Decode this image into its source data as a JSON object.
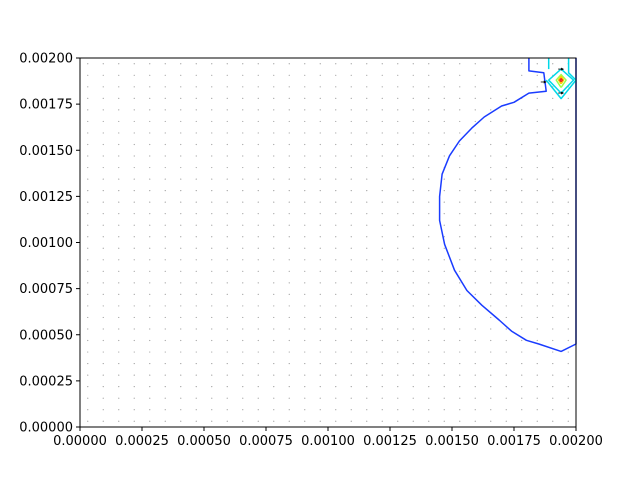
{
  "chart_data": {
    "type": "contour",
    "xlim": [
      0,
      0.002
    ],
    "ylim": [
      0,
      0.002
    ],
    "x_ticks": [
      0,
      0.00025,
      0.0005,
      0.00075,
      0.001,
      0.00125,
      0.0015,
      0.00175,
      0.002
    ],
    "y_ticks": [
      0,
      0.00025,
      0.0005,
      0.00075,
      0.001,
      0.00125,
      0.0015,
      0.00175,
      0.002
    ],
    "x_tick_labels": [
      "0.00000",
      "0.00025",
      "0.00050",
      "0.00075",
      "0.00100",
      "0.00125",
      "0.00150",
      "0.00175",
      "0.00200"
    ],
    "y_tick_labels": [
      "0.00000",
      "0.00025",
      "0.00050",
      "0.00075",
      "0.00100",
      "0.00125",
      "0.00150",
      "0.00175",
      "0.00200"
    ],
    "grid": false,
    "sample_grid": {
      "nx": 32,
      "ny": 32,
      "color": "#9e9e9e"
    },
    "contours": [
      {
        "color": "#1a3cff",
        "points": [
          [
            0.00181,
            0.002
          ],
          [
            0.00181,
            0.00193
          ],
          [
            0.00187,
            0.00192
          ],
          [
            0.00188,
            0.00182
          ],
          [
            0.00181,
            0.00181
          ],
          [
            0.00175,
            0.00176
          ],
          [
            0.0017,
            0.00174
          ],
          [
            0.00163,
            0.00168
          ],
          [
            0.00158,
            0.00162
          ],
          [
            0.00153,
            0.00155
          ],
          [
            0.00149,
            0.00147
          ],
          [
            0.00146,
            0.00137
          ],
          [
            0.00145,
            0.00125
          ],
          [
            0.00145,
            0.00112
          ],
          [
            0.00147,
            0.00099
          ],
          [
            0.00151,
            0.00085
          ],
          [
            0.00156,
            0.00074
          ],
          [
            0.00162,
            0.00066
          ],
          [
            0.00169,
            0.00058
          ],
          [
            0.00174,
            0.00052
          ],
          [
            0.0018,
            0.00047
          ],
          [
            0.00185,
            0.00045
          ],
          [
            0.00194,
            0.00041
          ],
          [
            0.002,
            0.00045
          ],
          [
            0.002,
            0.002
          ]
        ]
      },
      {
        "color": "#00d8e8",
        "points": [
          [
            0.00188,
            0.00188
          ],
          [
            0.00194,
            0.00178
          ],
          [
            0.002,
            0.00188
          ],
          [
            0.00197,
            0.00192
          ],
          [
            0.00197,
            0.002
          ]
        ]
      },
      {
        "color": "#00d8e8",
        "points": [
          [
            0.00189,
            0.002
          ],
          [
            0.00189,
            0.00194
          ]
        ]
      },
      {
        "color": "#00d8e8",
        "points": [
          [
            0.00194,
            0.00181
          ],
          [
            0.00189,
            0.00188
          ],
          [
            0.00194,
            0.00194
          ],
          [
            0.00199,
            0.00188
          ],
          [
            0.00194,
            0.00181
          ]
        ]
      },
      {
        "color": "#9cff4a",
        "points": [
          [
            0.00194,
            0.00184
          ],
          [
            0.00192,
            0.00188
          ],
          [
            0.00194,
            0.00191
          ],
          [
            0.00196,
            0.00188
          ],
          [
            0.00194,
            0.00184
          ]
        ]
      },
      {
        "color": "#ffcc00",
        "points": [
          [
            0.00194,
            0.00186
          ],
          [
            0.00193,
            0.00188
          ],
          [
            0.00194,
            0.0019
          ],
          [
            0.00195,
            0.00188
          ],
          [
            0.00194,
            0.00186
          ]
        ]
      },
      {
        "color": "#ee2222",
        "points": [
          [
            0.00194,
            0.001872
          ],
          [
            0.001935,
            0.00188
          ],
          [
            0.00194,
            0.001888
          ],
          [
            0.001945,
            0.00188
          ],
          [
            0.00194,
            0.001872
          ]
        ]
      }
    ],
    "arrows": [
      {
        "x": 0.00187,
        "y": 0.00187,
        "color": "#000000"
      },
      {
        "x": 0.00194,
        "y": 0.00181,
        "color": "#000000"
      },
      {
        "x": 0.00194,
        "y": 0.00194,
        "color": "#000000"
      }
    ]
  }
}
